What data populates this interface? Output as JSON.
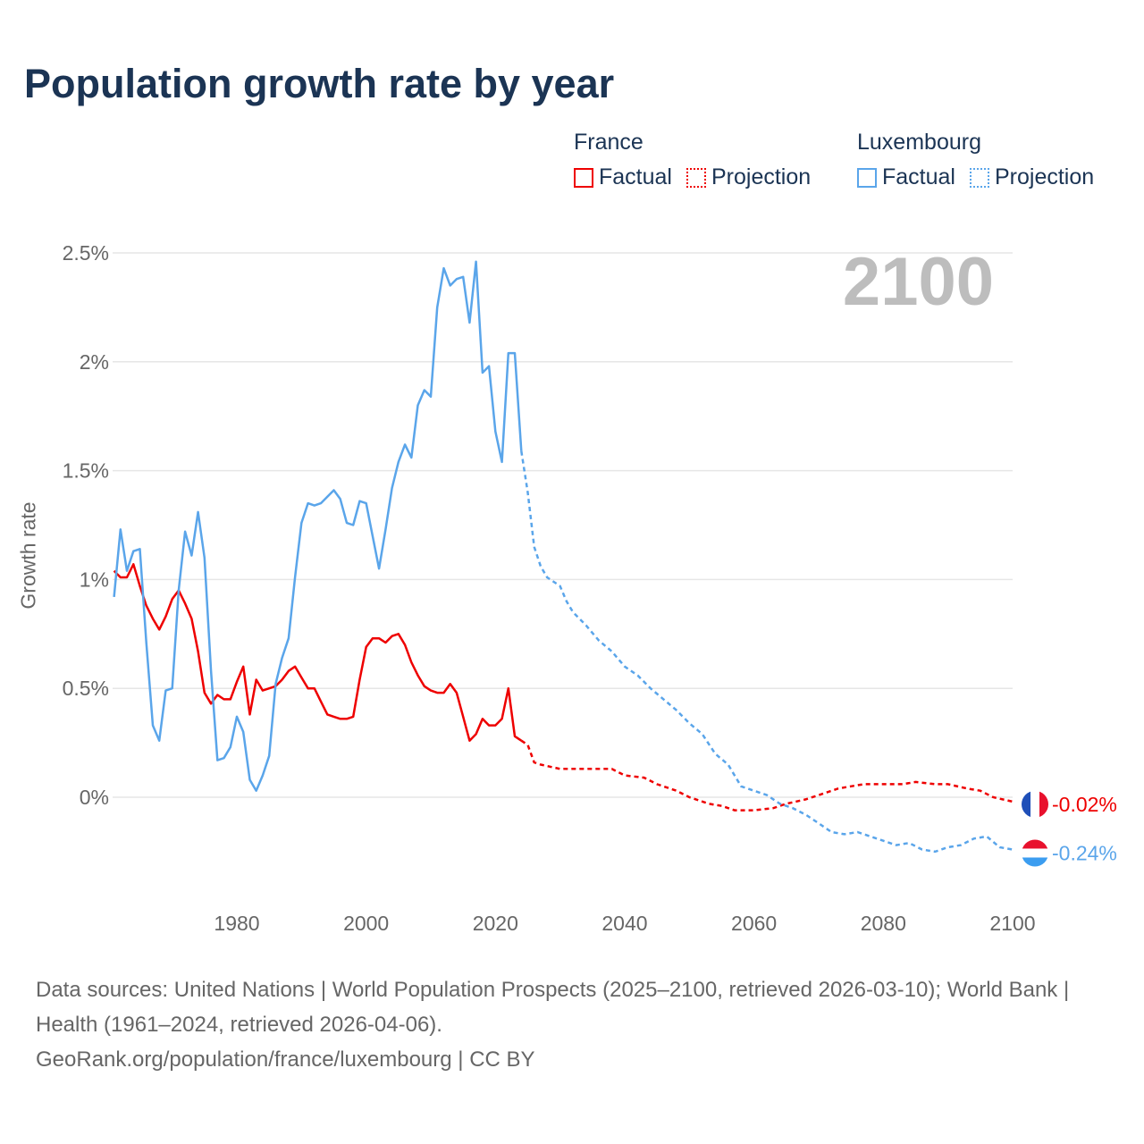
{
  "title": "Population growth rate by year",
  "current_year": "2100",
  "legend": [
    {
      "group": "France",
      "color": "#ee0000",
      "items": [
        "Factual",
        "Projection"
      ]
    },
    {
      "group": "Luxembourg",
      "color": "#5aa5ea",
      "items": [
        "Factual",
        "Projection"
      ]
    }
  ],
  "footer": {
    "sources": "Data sources: United Nations | World Population Prospects (2025–2100, retrieved 2026-03-10); World Bank | Health (1961–2024, retrieved 2026-04-06).",
    "credit": "GeoRank.org/population/france/luxembourg | CC BY"
  },
  "chart_data": {
    "type": "line",
    "title": "Population growth rate by year",
    "xlabel": "",
    "ylabel": "Growth rate",
    "xlim": [
      1960,
      2100
    ],
    "ylim": [
      -0.45,
      2.6
    ],
    "x_ticks": [
      1980,
      2000,
      2020,
      2040,
      2060,
      2080,
      2100
    ],
    "y_ticks": [
      {
        "v": 0,
        "label": "0%"
      },
      {
        "v": 0.5,
        "label": "0.5%"
      },
      {
        "v": 1,
        "label": "1%"
      },
      {
        "v": 1.5,
        "label": "1.5%"
      },
      {
        "v": 2,
        "label": "2%"
      },
      {
        "v": 2.5,
        "label": "2.5%"
      }
    ],
    "grid": true,
    "series": [
      {
        "name": "France",
        "color": "#ee0000",
        "end_label": "-0.02%",
        "factual": {
          "x": [
            1961,
            1962,
            1963,
            1964,
            1965,
            1966,
            1967,
            1968,
            1969,
            1970,
            1971,
            1972,
            1973,
            1974,
            1975,
            1976,
            1977,
            1978,
            1979,
            1980,
            1981,
            1982,
            1983,
            1984,
            1985,
            1986,
            1987,
            1988,
            1989,
            1990,
            1991,
            1992,
            1993,
            1994,
            1995,
            1996,
            1997,
            1998,
            1999,
            2000,
            2001,
            2002,
            2003,
            2004,
            2005,
            2006,
            2007,
            2008,
            2009,
            2010,
            2011,
            2012,
            2013,
            2014,
            2015,
            2016,
            2017,
            2018,
            2019,
            2020,
            2021,
            2022,
            2023,
            2024
          ],
          "y": [
            1.04,
            1.01,
            1.01,
            1.07,
            0.97,
            0.88,
            0.82,
            0.77,
            0.83,
            0.91,
            0.95,
            0.89,
            0.82,
            0.67,
            0.48,
            0.43,
            0.47,
            0.45,
            0.45,
            0.53,
            0.6,
            0.38,
            0.54,
            0.49,
            0.5,
            0.51,
            0.54,
            0.58,
            0.6,
            0.55,
            0.5,
            0.5,
            0.44,
            0.38,
            0.37,
            0.36,
            0.36,
            0.37,
            0.54,
            0.69,
            0.73,
            0.73,
            0.71,
            0.74,
            0.75,
            0.7,
            0.62,
            0.56,
            0.51,
            0.49,
            0.48,
            0.48,
            0.52,
            0.48,
            0.37,
            0.26,
            0.29,
            0.36,
            0.33,
            0.33,
            0.36,
            0.5,
            0.28,
            0.26
          ]
        },
        "projection": {
          "x": [
            2024,
            2025,
            2026,
            2027,
            2030,
            2035,
            2038,
            2040,
            2043,
            2045,
            2048,
            2050,
            2053,
            2055,
            2057,
            2060,
            2063,
            2065,
            2068,
            2070,
            2073,
            2075,
            2077,
            2080,
            2083,
            2085,
            2088,
            2090,
            2093,
            2095,
            2097,
            2100
          ],
          "y": [
            0.26,
            0.24,
            0.16,
            0.15,
            0.13,
            0.13,
            0.13,
            0.1,
            0.09,
            0.06,
            0.03,
            0.0,
            -0.03,
            -0.04,
            -0.06,
            -0.06,
            -0.05,
            -0.03,
            -0.01,
            0.01,
            0.04,
            0.05,
            0.06,
            0.06,
            0.06,
            0.07,
            0.06,
            0.06,
            0.04,
            0.03,
            0.0,
            -0.02
          ]
        }
      },
      {
        "name": "Luxembourg",
        "color": "#5aa5ea",
        "end_label": "-0.24%",
        "factual": {
          "x": [
            1961,
            1962,
            1963,
            1964,
            1965,
            1966,
            1967,
            1968,
            1969,
            1970,
            1971,
            1972,
            1973,
            1974,
            1975,
            1976,
            1977,
            1978,
            1979,
            1980,
            1981,
            1982,
            1983,
            1984,
            1985,
            1986,
            1987,
            1988,
            1989,
            1990,
            1991,
            1992,
            1993,
            1994,
            1995,
            1996,
            1997,
            1998,
            1999,
            2000,
            2001,
            2002,
            2003,
            2004,
            2005,
            2006,
            2007,
            2008,
            2009,
            2010,
            2011,
            2012,
            2013,
            2014,
            2015,
            2016,
            2017,
            2018,
            2019,
            2020,
            2021,
            2022,
            2023,
            2024
          ],
          "y": [
            0.92,
            1.23,
            1.04,
            1.13,
            1.14,
            0.71,
            0.33,
            0.26,
            0.49,
            0.5,
            0.95,
            1.22,
            1.11,
            1.31,
            1.1,
            0.58,
            0.17,
            0.18,
            0.23,
            0.37,
            0.3,
            0.08,
            0.03,
            0.1,
            0.19,
            0.52,
            0.64,
            0.73,
            1.01,
            1.26,
            1.35,
            1.34,
            1.35,
            1.38,
            1.41,
            1.37,
            1.26,
            1.25,
            1.36,
            1.35,
            1.2,
            1.05,
            1.23,
            1.42,
            1.54,
            1.62,
            1.56,
            1.8,
            1.87,
            1.84,
            2.25,
            2.43,
            2.35,
            2.38,
            2.39,
            2.18,
            2.46,
            1.95,
            1.98,
            1.68,
            1.54,
            2.04,
            2.04,
            1.59
          ]
        },
        "projection": {
          "x": [
            2024,
            2025,
            2026,
            2027,
            2028,
            2030,
            2031,
            2032,
            2034,
            2036,
            2038,
            2040,
            2042,
            2044,
            2046,
            2048,
            2050,
            2052,
            2054,
            2056,
            2058,
            2060,
            2062,
            2064,
            2066,
            2068,
            2070,
            2072,
            2074,
            2076,
            2078,
            2080,
            2082,
            2084,
            2086,
            2088,
            2090,
            2092,
            2094,
            2096,
            2098,
            2100
          ],
          "y": [
            1.59,
            1.4,
            1.15,
            1.06,
            1.01,
            0.97,
            0.9,
            0.85,
            0.79,
            0.72,
            0.67,
            0.6,
            0.56,
            0.5,
            0.45,
            0.4,
            0.34,
            0.29,
            0.2,
            0.15,
            0.05,
            0.03,
            0.01,
            -0.03,
            -0.05,
            -0.08,
            -0.12,
            -0.16,
            -0.17,
            -0.16,
            -0.18,
            -0.2,
            -0.22,
            -0.21,
            -0.24,
            -0.25,
            -0.23,
            -0.22,
            -0.19,
            -0.18,
            -0.23,
            -0.24
          ]
        }
      }
    ]
  }
}
